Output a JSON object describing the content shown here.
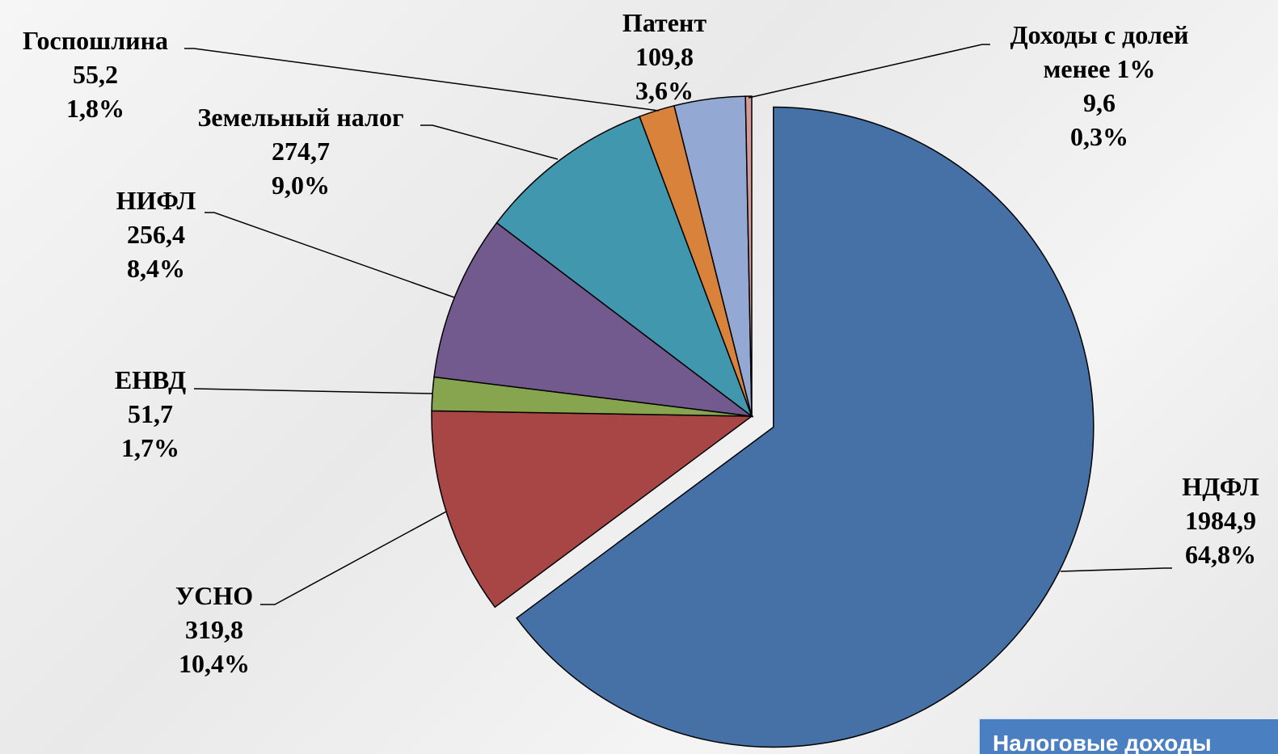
{
  "chart_data": {
    "type": "pie",
    "categories": [
      "НДФЛ",
      "УСНО",
      "ЕНВД",
      "НИФЛ",
      "Земельный налог",
      "Госпошлина",
      "Патент",
      "Доходы с долей менее 1%"
    ],
    "values": [
      1984.9,
      319.8,
      51.7,
      256.4,
      274.7,
      55.2,
      109.8,
      9.6
    ],
    "value_labels": [
      "1984,9",
      "319,8",
      "51,7",
      "256,4",
      "274,7",
      "55,2",
      "109,8",
      "9,6"
    ],
    "percent_labels": [
      "64,8%",
      "10,4%",
      "1,7%",
      "8,4%",
      "9,0%",
      "1,8%",
      "3,6%",
      "0,3%"
    ],
    "colors": [
      "#4571a6",
      "#a84646",
      "#87a44f",
      "#725a8e",
      "#4197ad",
      "#d9823b",
      "#93a8d2",
      "#d49a9a"
    ],
    "caption": "Налоговые доходы"
  }
}
